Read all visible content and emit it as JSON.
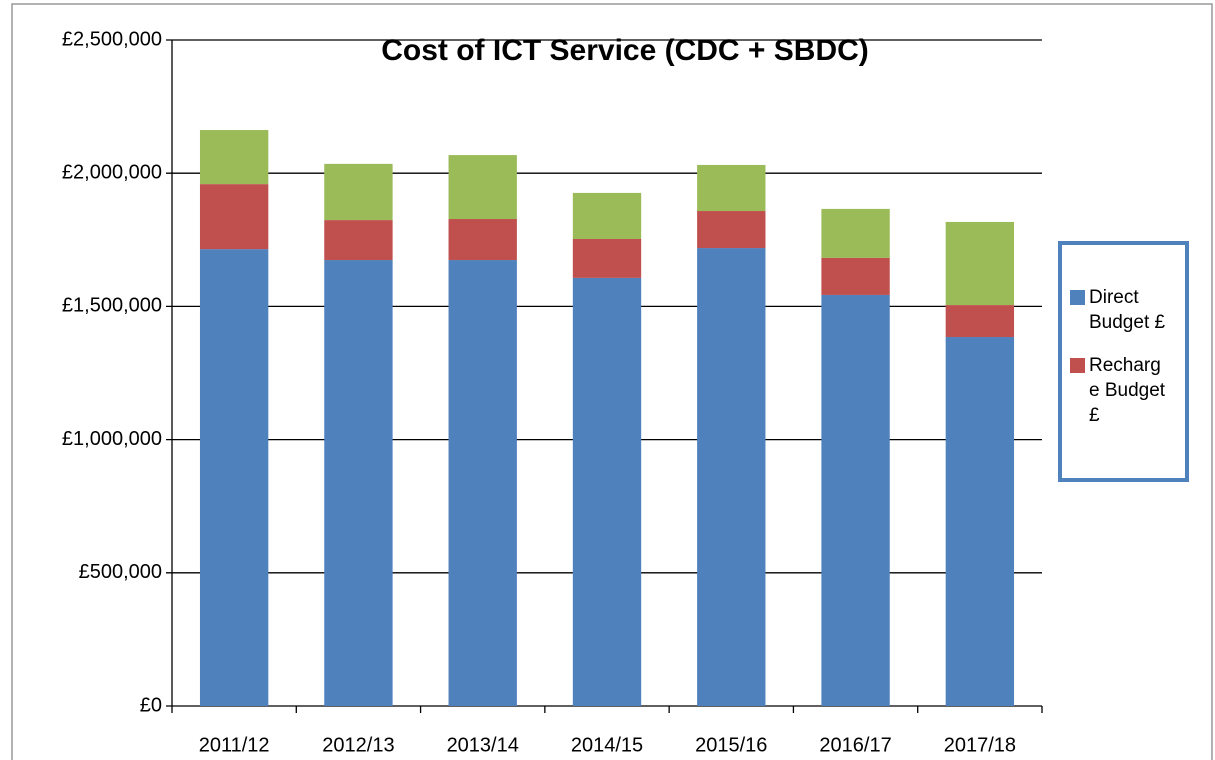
{
  "chart_data": {
    "type": "stacked_bar",
    "title": "Cost of ICT Service (CDC + SBDC)",
    "categories": [
      "2011/12",
      "2012/13",
      "2013/14",
      "2014/15",
      "2015/16",
      "2016/17",
      "2017/18"
    ],
    "series": [
      {
        "name": "Direct Budget £",
        "color": "#4f81bd",
        "values": [
          1715000,
          1674000,
          1674000,
          1607000,
          1719000,
          1543000,
          1385000
        ]
      },
      {
        "name": "Recharge Budget £",
        "color": "#c0504d",
        "values": [
          244000,
          150000,
          154000,
          146000,
          139000,
          139000,
          120000
        ]
      },
      {
        "color": "#9bbb59",
        "values": [
          203000,
          211000,
          240000,
          173000,
          173000,
          184000,
          312000
        ]
      }
    ],
    "ylim": [
      0,
      2500000
    ],
    "yticks": [
      {
        "value": 0,
        "label": "£0"
      },
      {
        "value": 500000,
        "label": "£500,000"
      },
      {
        "value": 1000000,
        "label": "£1,000,000"
      },
      {
        "value": 1500000,
        "label": "£1,500,000"
      },
      {
        "value": 2000000,
        "label": "£2,000,000"
      },
      {
        "value": 2500000,
        "label": "£2,500,000"
      }
    ],
    "grid": true,
    "legend": "right"
  }
}
